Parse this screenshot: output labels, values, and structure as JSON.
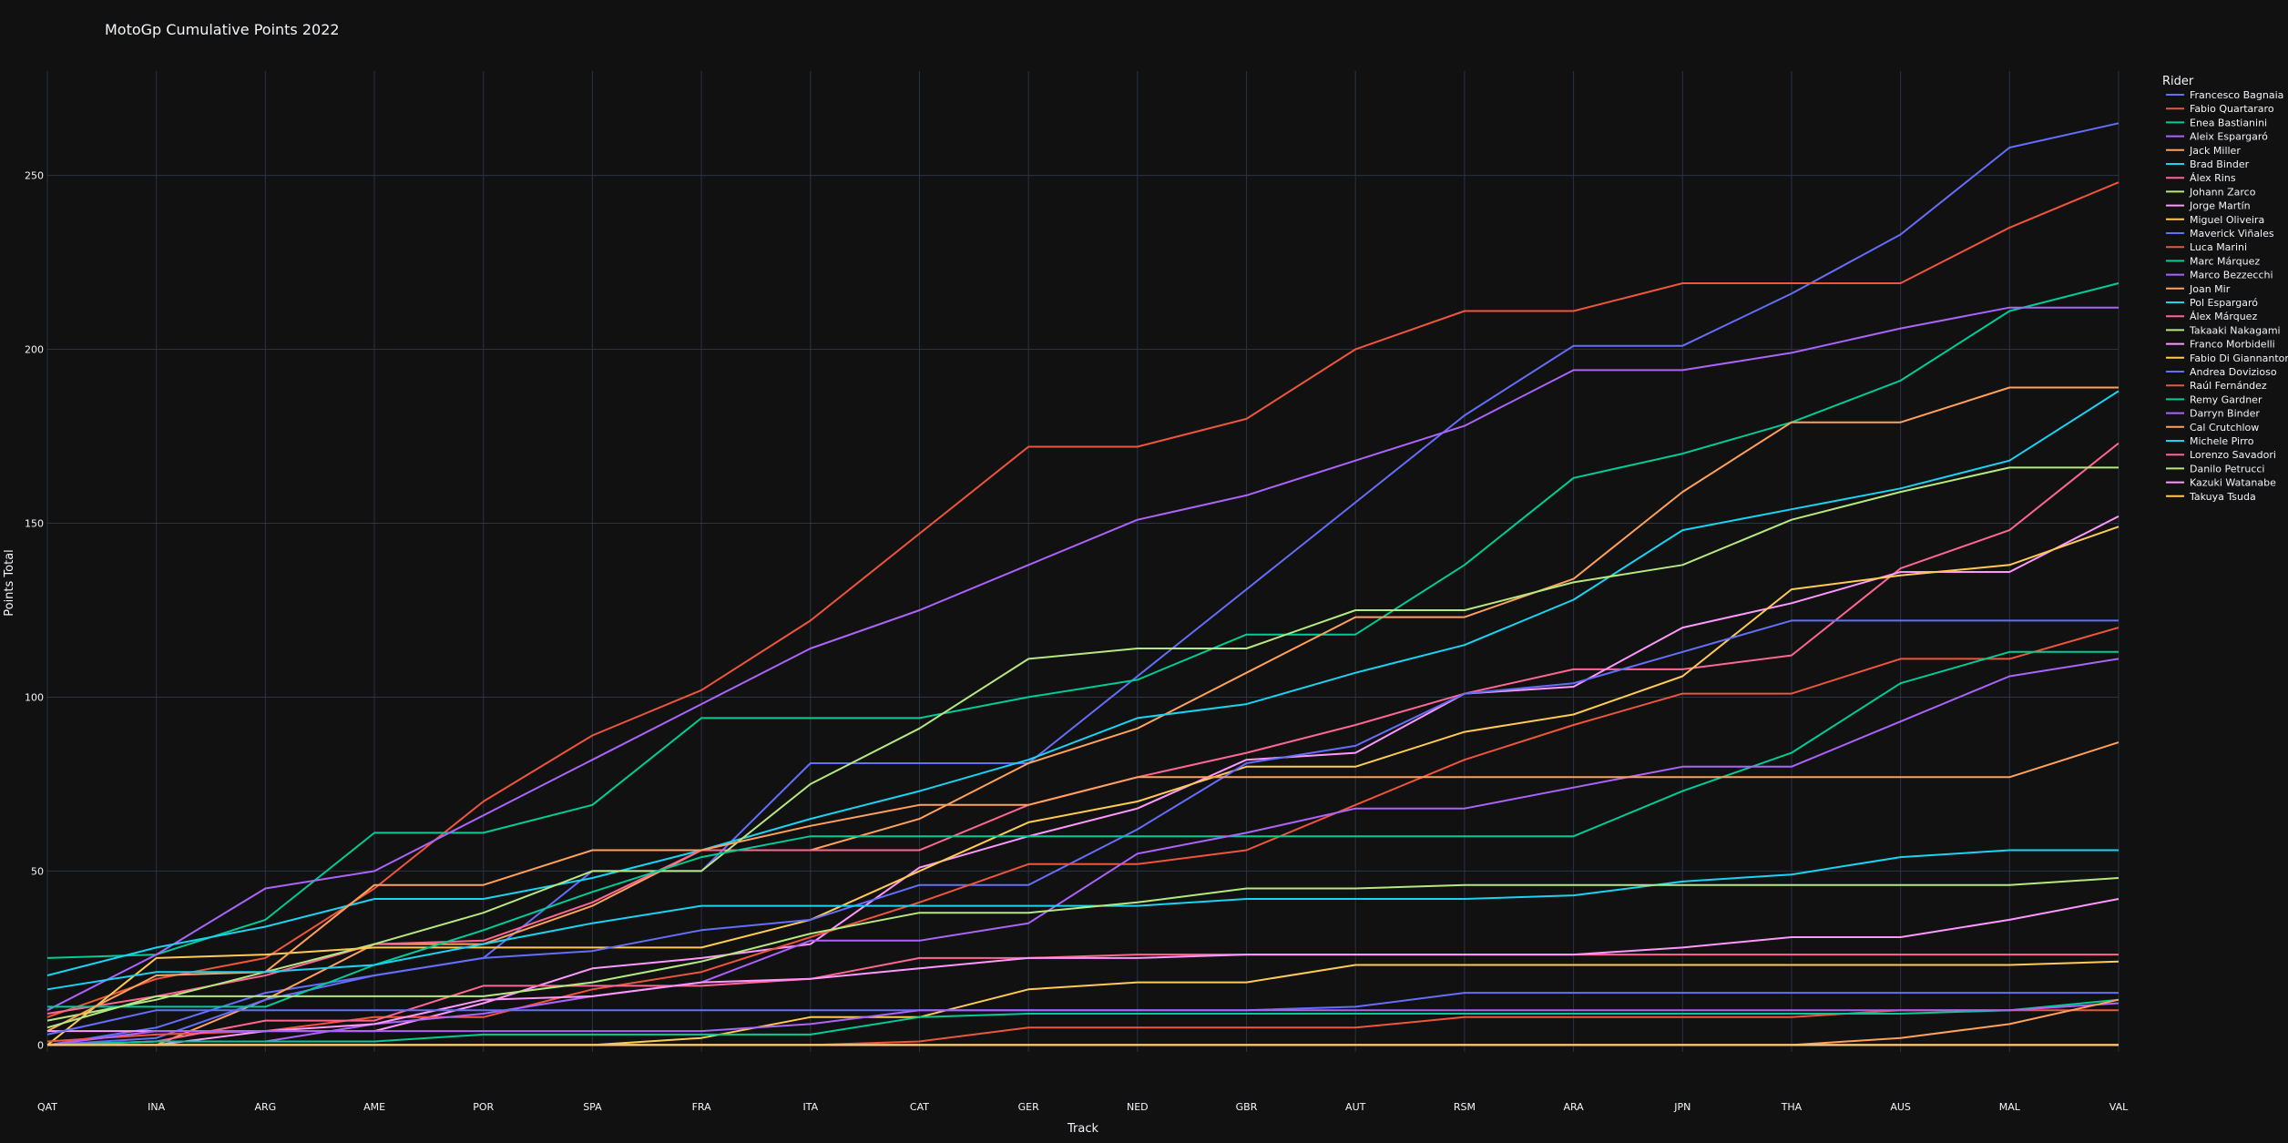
{
  "chart_data": {
    "type": "line",
    "title": "MotoGp Cumulative Points 2022",
    "xlabel": "Track",
    "ylabel": "Points Total",
    "legend_title": "Rider",
    "legend_position": "top-right",
    "grid": true,
    "ylim": [
      -2,
      280
    ],
    "yticks": [
      0,
      50,
      100,
      150,
      200,
      250
    ],
    "categories": [
      "QAT",
      "INA",
      "ARG",
      "AME",
      "POR",
      "SPA",
      "FRA",
      "ITA",
      "CAT",
      "GER",
      "NED",
      "GBR",
      "AUT",
      "RSM",
      "ARA",
      "JPN",
      "THA",
      "AUS",
      "MAL",
      "VAL"
    ],
    "series": [
      {
        "name": "Francesco Bagnaia",
        "color": "#636efa",
        "values": [
          0,
          5,
          15,
          20,
          25,
          50,
          50,
          81,
          81,
          81,
          106,
          131,
          156,
          181,
          201,
          201,
          216,
          233,
          258,
          265
        ]
      },
      {
        "name": "Fabio Quartararo",
        "color": "#ef553b",
        "values": [
          8,
          19,
          25,
          45,
          70,
          89,
          102,
          122,
          147,
          172,
          172,
          180,
          200,
          211,
          211,
          219,
          219,
          219,
          235,
          248
        ]
      },
      {
        "name": "Enea Bastianini",
        "color": "#00cc96",
        "values": [
          25,
          26,
          36,
          61,
          61,
          69,
          94,
          94,
          94,
          100,
          105,
          118,
          118,
          138,
          163,
          170,
          179,
          191,
          211,
          219
        ]
      },
      {
        "name": "Aleix Espargaró",
        "color": "#ab63fa",
        "values": [
          10,
          26,
          45,
          50,
          66,
          82,
          98,
          114,
          125,
          138,
          151,
          158,
          168,
          178,
          194,
          194,
          199,
          206,
          212,
          212
        ]
      },
      {
        "name": "Jack Miller",
        "color": "#ffa15a",
        "values": [
          0,
          0,
          13,
          29,
          29,
          40,
          56,
          56,
          65,
          81,
          91,
          107,
          123,
          123,
          134,
          159,
          179,
          179,
          189,
          189
        ]
      },
      {
        "name": "Brad Binder",
        "color": "#19d3f3",
        "values": [
          20,
          28,
          34,
          42,
          42,
          48,
          56,
          65,
          73,
          82,
          94,
          98,
          107,
          115,
          128,
          148,
          154,
          160,
          168,
          188
        ]
      },
      {
        "name": "Álex Rins",
        "color": "#ff6692",
        "values": [
          9,
          14,
          20,
          29,
          30,
          41,
          56,
          56,
          56,
          69,
          77,
          84,
          92,
          101,
          108,
          108,
          112,
          137,
          148,
          173
        ]
      },
      {
        "name": "Johann Zarco",
        "color": "#b6e880",
        "values": [
          7,
          13,
          21,
          29,
          38,
          50,
          50,
          75,
          91,
          111,
          114,
          114,
          125,
          125,
          133,
          138,
          151,
          159,
          166,
          166
        ]
      },
      {
        "name": "Jorge Martín",
        "color": "#ff97ff",
        "values": [
          0,
          0,
          4,
          4,
          12,
          22,
          25,
          29,
          51,
          60,
          68,
          82,
          84,
          101,
          103,
          120,
          127,
          136,
          136,
          152
        ]
      },
      {
        "name": "Miguel Oliveira",
        "color": "#fecb52",
        "values": [
          0,
          25,
          26,
          28,
          28,
          28,
          28,
          36,
          50,
          64,
          70,
          80,
          80,
          90,
          95,
          106,
          131,
          135,
          138,
          149
        ]
      },
      {
        "name": "Maverick Viñales",
        "color": "#636efa",
        "values": [
          0,
          2,
          13,
          20,
          25,
          27,
          33,
          36,
          46,
          46,
          62,
          81,
          86,
          101,
          104,
          113,
          122,
          122,
          122,
          122
        ]
      },
      {
        "name": "Luca Marini",
        "color": "#ef553b",
        "values": [
          1,
          3,
          4,
          8,
          8,
          16,
          21,
          31,
          41,
          52,
          52,
          56,
          69,
          82,
          92,
          101,
          101,
          111,
          111,
          120
        ]
      },
      {
        "name": "Marc Márquez",
        "color": "#00cc96",
        "values": [
          11,
          11,
          11,
          23,
          33,
          44,
          54,
          60,
          60,
          60,
          60,
          60,
          60,
          60,
          60,
          73,
          84,
          104,
          113,
          113
        ]
      },
      {
        "name": "Marco Bezzecchi",
        "color": "#ab63fa",
        "values": [
          0,
          1,
          1,
          6,
          9,
          14,
          18,
          30,
          30,
          35,
          55,
          61,
          68,
          68,
          74,
          80,
          80,
          93,
          106,
          111
        ]
      },
      {
        "name": "Joan Mir",
        "color": "#ffa15a",
        "values": [
          4,
          20,
          21,
          46,
          46,
          56,
          56,
          63,
          69,
          69,
          77,
          77,
          77,
          77,
          77,
          77,
          77,
          77,
          77,
          87
        ]
      },
      {
        "name": "Pol Espargaró",
        "color": "#19d3f3",
        "values": [
          16,
          21,
          21,
          23,
          29,
          35,
          40,
          40,
          40,
          40,
          40,
          42,
          42,
          42,
          43,
          47,
          49,
          54,
          56,
          56
        ]
      },
      {
        "name": "Álex Márquez",
        "color": "#ff6692",
        "values": [
          0,
          1,
          7,
          7,
          17,
          17,
          17,
          19,
          25,
          25,
          26,
          26,
          26,
          26,
          26,
          26,
          26,
          26,
          26,
          26
        ]
      },
      {
        "name": "Takaaki Nakagami",
        "color": "#b6e880",
        "values": [
          5,
          14,
          14,
          14,
          14,
          18,
          24,
          32,
          38,
          38,
          41,
          45,
          45,
          46,
          46,
          46,
          46,
          46,
          46,
          48
        ]
      },
      {
        "name": "Franco Morbidelli",
        "color": "#ff97ff",
        "values": [
          4,
          4,
          4,
          6,
          13,
          14,
          18,
          19,
          22,
          25,
          25,
          26,
          26,
          26,
          26,
          28,
          31,
          31,
          36,
          42
        ]
      },
      {
        "name": "Fabio Di Giannantonio",
        "color": "#fecb52",
        "values": [
          0,
          0,
          0,
          0,
          0,
          0,
          2,
          8,
          8,
          16,
          18,
          18,
          23,
          23,
          23,
          23,
          23,
          23,
          23,
          24
        ]
      },
      {
        "name": "Andrea Dovizioso",
        "color": "#636efa",
        "values": [
          3,
          10,
          10,
          10,
          10,
          10,
          10,
          10,
          10,
          10,
          10,
          10,
          11,
          15,
          15,
          15,
          15,
          15,
          15,
          15
        ]
      },
      {
        "name": "Raúl Fernández",
        "color": "#ef553b",
        "values": [
          0,
          0,
          0,
          0,
          0,
          0,
          0,
          0,
          1,
          5,
          5,
          5,
          5,
          8,
          8,
          8,
          8,
          10,
          10,
          10
        ]
      },
      {
        "name": "Remy Gardner",
        "color": "#00cc96",
        "values": [
          0,
          1,
          1,
          1,
          3,
          3,
          3,
          3,
          8,
          9,
          9,
          9,
          9,
          9,
          9,
          9,
          9,
          9,
          10,
          13
        ]
      },
      {
        "name": "Darryn Binder",
        "color": "#ab63fa",
        "values": [
          0,
          4,
          4,
          4,
          4,
          4,
          4,
          6,
          10,
          10,
          10,
          10,
          10,
          10,
          10,
          10,
          10,
          10,
          10,
          12
        ]
      },
      {
        "name": "Cal Crutchlow",
        "color": "#ffa15a",
        "values": [
          0,
          0,
          0,
          0,
          0,
          0,
          0,
          0,
          0,
          0,
          0,
          0,
          0,
          0,
          0,
          0,
          0,
          2,
          6,
          13
        ]
      },
      {
        "name": "Michele Pirro",
        "color": "#19d3f3",
        "values": [
          0,
          0,
          0,
          0,
          0,
          0,
          0,
          0,
          0,
          0,
          0,
          0,
          0,
          0,
          0,
          0,
          0,
          0,
          0,
          0
        ]
      },
      {
        "name": "Lorenzo Savadori",
        "color": "#ff6692",
        "values": [
          0,
          0,
          0,
          0,
          0,
          0,
          0,
          0,
          0,
          0,
          0,
          0,
          0,
          0,
          0,
          0,
          0,
          0,
          0,
          0
        ]
      },
      {
        "name": "Danilo Petrucci",
        "color": "#b6e880",
        "values": [
          0,
          0,
          0,
          0,
          0,
          0,
          0,
          0,
          0,
          0,
          0,
          0,
          0,
          0,
          0,
          0,
          0,
          0,
          0,
          0
        ]
      },
      {
        "name": "Kazuki Watanabe",
        "color": "#ff97ff",
        "values": [
          0,
          0,
          0,
          0,
          0,
          0,
          0,
          0,
          0,
          0,
          0,
          0,
          0,
          0,
          0,
          0,
          0,
          0,
          0,
          0
        ]
      },
      {
        "name": "Takuya Tsuda",
        "color": "#fecb52",
        "values": [
          0,
          0,
          0,
          0,
          0,
          0,
          0,
          0,
          0,
          0,
          0,
          0,
          0,
          0,
          0,
          0,
          0,
          0,
          0,
          0
        ]
      }
    ]
  },
  "toolbar": {
    "buttons": [
      {
        "name": "camera-icon",
        "glyph": "📷"
      },
      {
        "name": "zoom-icon",
        "glyph": "🔍"
      },
      {
        "name": "pan-icon",
        "glyph": "✥"
      },
      {
        "name": "zoom-in-icon",
        "glyph": "⊞"
      },
      {
        "name": "zoom-out-icon",
        "glyph": "⊟"
      },
      {
        "name": "autoscale-icon",
        "glyph": "✕"
      },
      {
        "name": "reset-axes-icon",
        "glyph": "⌂"
      },
      {
        "name": "plotly-logo-icon",
        "glyph": "▟"
      }
    ]
  }
}
